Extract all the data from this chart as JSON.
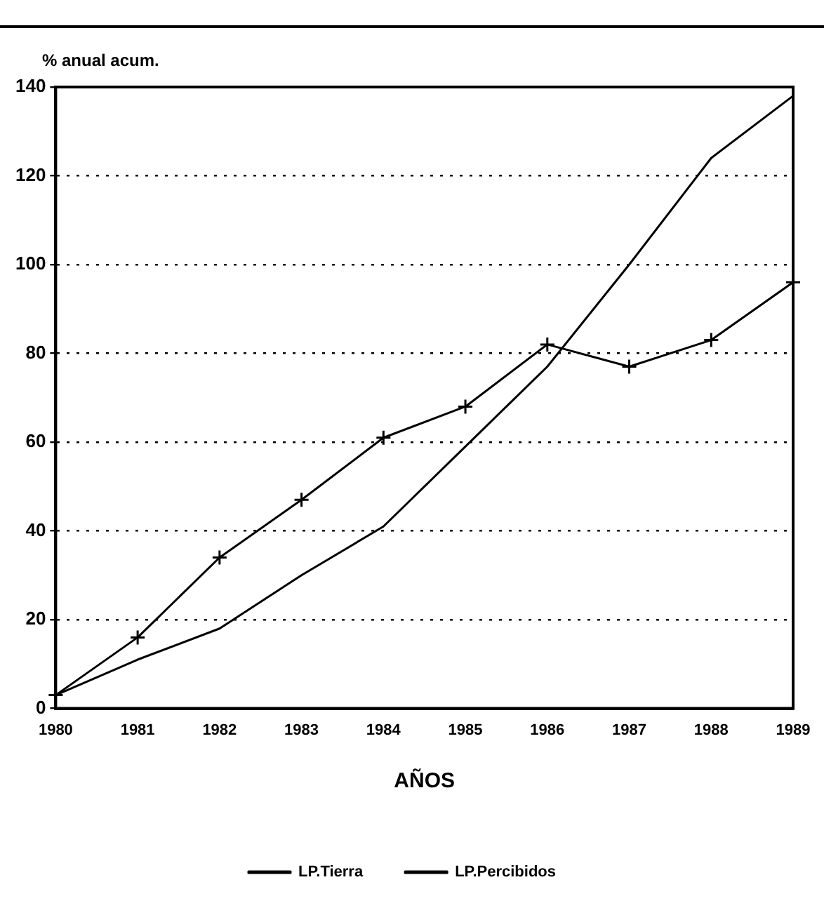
{
  "chart_data": {
    "type": "line",
    "ylabel": "% anual acum.",
    "xlabel": "AÑOS",
    "categories": [
      "1980",
      "1981",
      "1982",
      "1983",
      "1984",
      "1985",
      "1986",
      "1987",
      "1988",
      "1989"
    ],
    "series": [
      {
        "name": "LP.Tierra",
        "color": "#000000",
        "marker": "none",
        "values": [
          3,
          11,
          18,
          30,
          41,
          59,
          77,
          100,
          124,
          138
        ]
      },
      {
        "name": "LP.Percibidos",
        "color": "#000000",
        "marker": "cross",
        "values": [
          3,
          16,
          34,
          47,
          61,
          68,
          82,
          77,
          83,
          96
        ]
      }
    ],
    "ylim": [
      0,
      140
    ],
    "yticks": [
      0,
      20,
      40,
      60,
      80,
      100,
      120,
      140
    ],
    "grid": "y",
    "legend": "bottom",
    "line_style": "solid"
  }
}
